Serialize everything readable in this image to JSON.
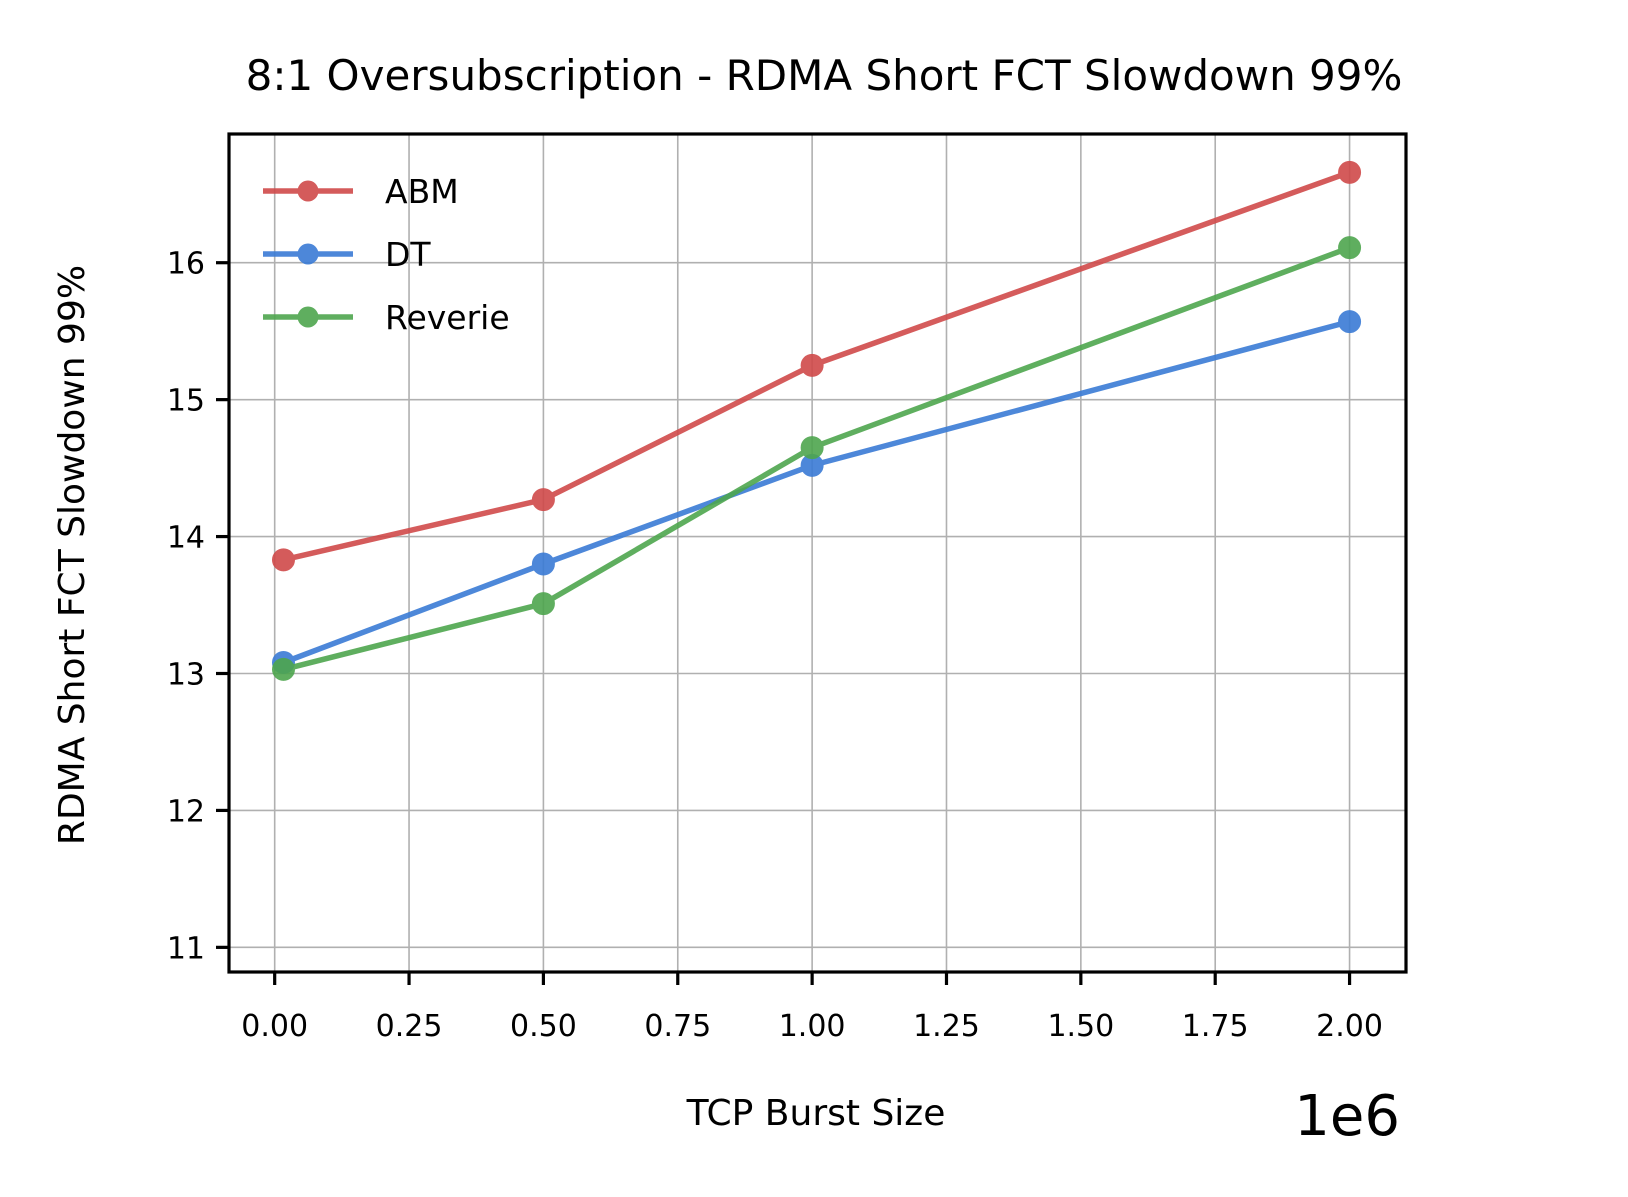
{
  "chart_data": {
    "type": "line",
    "title": "8:1 Oversubscription - RDMA Short FCT Slowdown 99%",
    "xlabel": "TCP Burst Size",
    "ylabel": "RDMA Short FCT Slowdown 99%",
    "x_offset_label": "1e6",
    "xlim": [
      -0.085,
      2.105
    ],
    "ylim": [
      10.82,
      16.94
    ],
    "x_ticks": [
      0.0,
      0.25,
      0.5,
      0.75,
      1.0,
      1.25,
      1.5,
      1.75,
      2.0
    ],
    "x_tick_labels": [
      "0.00",
      "0.25",
      "0.50",
      "0.75",
      "1.00",
      "1.25",
      "1.50",
      "1.75",
      "2.00"
    ],
    "y_ticks": [
      11,
      12,
      13,
      14,
      15,
      16
    ],
    "y_tick_labels": [
      "11",
      "12",
      "13",
      "14",
      "15",
      "16"
    ],
    "grid": true,
    "legend_position": "top-left",
    "x": [
      0.016384,
      0.5,
      1.0,
      2.0
    ],
    "series": [
      {
        "name": "ABM",
        "color": "#d04a4a",
        "values": [
          13.83,
          14.27,
          15.25,
          16.66
        ]
      },
      {
        "name": "DT",
        "color": "#3a7bd5",
        "values": [
          13.08,
          13.8,
          14.52,
          15.57
        ]
      },
      {
        "name": "Reverie",
        "color": "#4ea64e",
        "values": [
          13.03,
          13.51,
          14.65,
          16.11
        ]
      }
    ]
  }
}
